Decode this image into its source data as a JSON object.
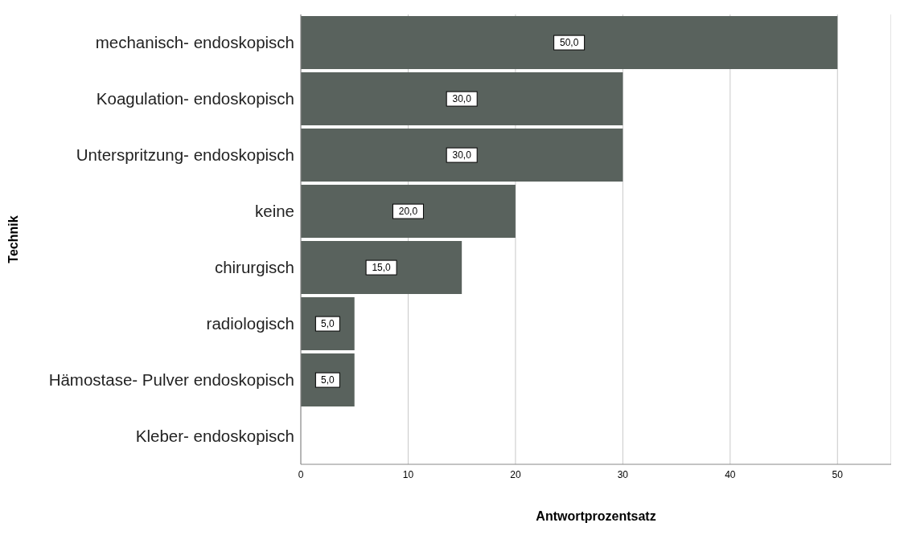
{
  "chart_data": {
    "type": "bar",
    "orientation": "horizontal",
    "xlabel": "Antwortprozentsatz",
    "ylabel": "Technik",
    "categories": [
      "mechanisch- endoskopisch",
      "Koagulation- endoskopisch",
      "Unterspritzung- endoskopisch",
      "keine",
      "chirurgisch",
      "radiologisch",
      "Hämostase- Pulver endoskopisch",
      "Kleber- endoskopisch"
    ],
    "values": [
      50,
      30,
      30,
      20,
      15,
      5,
      5,
      0
    ],
    "value_labels": [
      "50,0",
      "30,0",
      "30,0",
      "20,0",
      "15,0",
      "5,0",
      "5,0",
      null
    ],
    "color": "#59625d",
    "xlim": [
      0,
      55
    ],
    "xticks": [
      0,
      10,
      20,
      30,
      40,
      50
    ],
    "grid": "x"
  }
}
